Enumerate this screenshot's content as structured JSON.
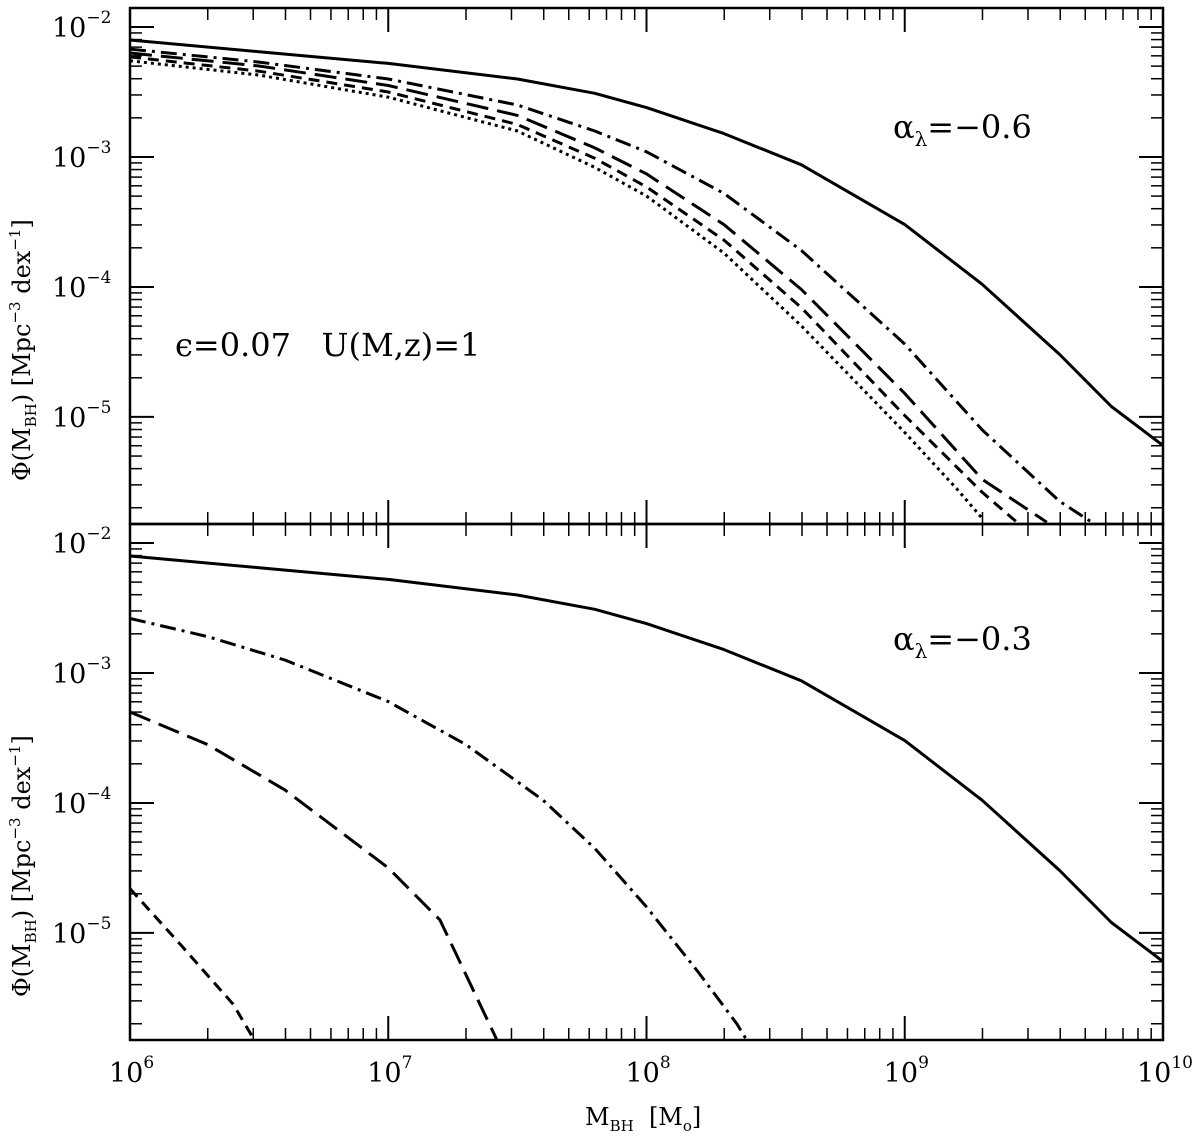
{
  "chart_data": [
    {
      "type": "line",
      "panel": "top",
      "xscale": "log",
      "yscale": "log",
      "xlim": [
        1000000,
        10000000000
      ],
      "ylim": [
        1.5e-06,
        0.014
      ],
      "ylabel": "Φ(M_BH) [Mpc^-3 dex^-1]",
      "xlabel": "",
      "x_tick_labels": [],
      "y_tick_labels": [
        {
          "base": "10",
          "exp": "−2",
          "value": 0.01
        },
        {
          "base": "10",
          "exp": "−3",
          "value": 0.001
        },
        {
          "base": "10",
          "exp": "−4",
          "value": 0.0001
        },
        {
          "base": "10",
          "exp": "−5",
          "value": 1e-05
        }
      ],
      "annotations": [
        {
          "id": "alpha",
          "text": "α",
          "sub": "λ",
          "value_text": "=−0.6"
        },
        {
          "id": "params",
          "text": "ϵ=0.07   U(M,z)=1"
        }
      ],
      "series": [
        {
          "name": "solid",
          "style": "solid",
          "points": [
            [
              6.0,
              -2.1
            ],
            [
              6.5,
              -2.19
            ],
            [
              7.0,
              -2.28
            ],
            [
              7.5,
              -2.4
            ],
            [
              7.8,
              -2.51
            ],
            [
              8.0,
              -2.62
            ],
            [
              8.3,
              -2.82
            ],
            [
              8.6,
              -3.06
            ],
            [
              9.0,
              -3.52
            ],
            [
              9.3,
              -3.98
            ],
            [
              9.6,
              -4.52
            ],
            [
              9.8,
              -4.92
            ],
            [
              10.0,
              -5.22
            ]
          ]
        },
        {
          "name": "dot-dash",
          "style": "dotdash",
          "points": [
            [
              6.0,
              -2.17
            ],
            [
              6.5,
              -2.27
            ],
            [
              7.0,
              -2.4
            ],
            [
              7.5,
              -2.6
            ],
            [
              7.8,
              -2.8
            ],
            [
              8.0,
              -2.96
            ],
            [
              8.3,
              -3.28
            ],
            [
              8.6,
              -3.72
            ],
            [
              9.0,
              -4.44
            ],
            [
              9.3,
              -5.1
            ],
            [
              9.6,
              -5.65
            ],
            [
              9.74,
              -5.83
            ]
          ]
        },
        {
          "name": "long-dash",
          "style": "longdash",
          "points": [
            [
              6.0,
              -2.2
            ],
            [
              6.5,
              -2.3
            ],
            [
              7.0,
              -2.45
            ],
            [
              7.5,
              -2.68
            ],
            [
              7.8,
              -2.93
            ],
            [
              8.0,
              -3.13
            ],
            [
              8.3,
              -3.52
            ],
            [
              8.6,
              -4.02
            ],
            [
              9.0,
              -4.82
            ],
            [
              9.3,
              -5.48
            ],
            [
              9.55,
              -5.81
            ]
          ]
        },
        {
          "name": "short-dash",
          "style": "shortdash",
          "points": [
            [
              6.0,
              -2.23
            ],
            [
              6.5,
              -2.34
            ],
            [
              7.0,
              -2.5
            ],
            [
              7.5,
              -2.75
            ],
            [
              7.8,
              -3.01
            ],
            [
              8.0,
              -3.23
            ],
            [
              8.3,
              -3.64
            ],
            [
              8.6,
              -4.16
            ],
            [
              9.0,
              -4.99
            ],
            [
              9.3,
              -5.58
            ],
            [
              9.44,
              -5.82
            ]
          ]
        },
        {
          "name": "dotted",
          "style": "dotted",
          "points": [
            [
              6.0,
              -2.26
            ],
            [
              6.5,
              -2.37
            ],
            [
              7.0,
              -2.54
            ],
            [
              7.5,
              -2.8
            ],
            [
              7.8,
              -3.08
            ],
            [
              8.0,
              -3.3
            ],
            [
              8.3,
              -3.74
            ],
            [
              8.6,
              -4.3
            ],
            [
              9.0,
              -5.12
            ],
            [
              9.2,
              -5.55
            ],
            [
              9.3,
              -5.78
            ]
          ]
        }
      ]
    },
    {
      "type": "line",
      "panel": "bottom",
      "xscale": "log",
      "yscale": "log",
      "xlim": [
        1000000,
        10000000000
      ],
      "ylim": [
        1.5e-06,
        0.014
      ],
      "ylabel": "Φ(M_BH) [Mpc^-3 dex^-1]",
      "xlabel": "M_BH [M_o]",
      "x_tick_labels": [
        {
          "base": "10",
          "exp": "6",
          "value": 1000000
        },
        {
          "base": "10",
          "exp": "7",
          "value": 10000000
        },
        {
          "base": "10",
          "exp": "8",
          "value": 100000000
        },
        {
          "base": "10",
          "exp": "9",
          "value": 1000000000
        },
        {
          "base": "10",
          "exp": "10",
          "value": 10000000000
        }
      ],
      "y_tick_labels": [
        {
          "base": "10",
          "exp": "−2",
          "value": 0.01
        },
        {
          "base": "10",
          "exp": "−3",
          "value": 0.001
        },
        {
          "base": "10",
          "exp": "−4",
          "value": 0.0001
        },
        {
          "base": "10",
          "exp": "−5",
          "value": 1e-05
        }
      ],
      "annotations": [
        {
          "id": "alpha",
          "text": "α",
          "sub": "λ",
          "value_text": "=−0.3"
        }
      ],
      "series": [
        {
          "name": "solid",
          "style": "solid",
          "points": [
            [
              6.0,
              -2.1
            ],
            [
              6.5,
              -2.19
            ],
            [
              7.0,
              -2.28
            ],
            [
              7.5,
              -2.4
            ],
            [
              7.8,
              -2.51
            ],
            [
              8.0,
              -2.62
            ],
            [
              8.3,
              -2.82
            ],
            [
              8.6,
              -3.06
            ],
            [
              9.0,
              -3.52
            ],
            [
              9.3,
              -3.98
            ],
            [
              9.6,
              -4.52
            ],
            [
              9.8,
              -4.92
            ],
            [
              10.0,
              -5.22
            ]
          ]
        },
        {
          "name": "dot-dash",
          "style": "dotdash",
          "points": [
            [
              6.0,
              -2.58
            ],
            [
              6.3,
              -2.72
            ],
            [
              6.6,
              -2.9
            ],
            [
              7.0,
              -3.22
            ],
            [
              7.3,
              -3.55
            ],
            [
              7.6,
              -3.98
            ],
            [
              7.8,
              -4.35
            ],
            [
              8.0,
              -4.8
            ],
            [
              8.2,
              -5.3
            ],
            [
              8.35,
              -5.7
            ],
            [
              8.39,
              -5.83
            ]
          ]
        },
        {
          "name": "long-dash",
          "style": "longdash",
          "points": [
            [
              6.0,
              -3.3
            ],
            [
              6.3,
              -3.55
            ],
            [
              6.6,
              -3.9
            ],
            [
              7.0,
              -4.5
            ],
            [
              7.2,
              -4.9
            ],
            [
              7.42,
              -5.82
            ]
          ]
        },
        {
          "name": "short-dash",
          "style": "shortdash",
          "points": [
            [
              6.0,
              -4.66
            ],
            [
              6.2,
              -5.1
            ],
            [
              6.4,
              -5.55
            ],
            [
              6.48,
              -5.82
            ]
          ]
        }
      ]
    }
  ],
  "axes": {
    "x_title": {
      "main": "M",
      "sub": "BH",
      "bracket_open": "[M",
      "bracket_sub": "o",
      "bracket_close": "]"
    },
    "y_title": {
      "main": "Φ(M",
      "sub": "BH",
      "close": ")",
      "units": "[Mpc",
      "units_exp": "−3",
      "units_mid": " dex",
      "units_exp2": "−1",
      "units_close": "]"
    }
  }
}
